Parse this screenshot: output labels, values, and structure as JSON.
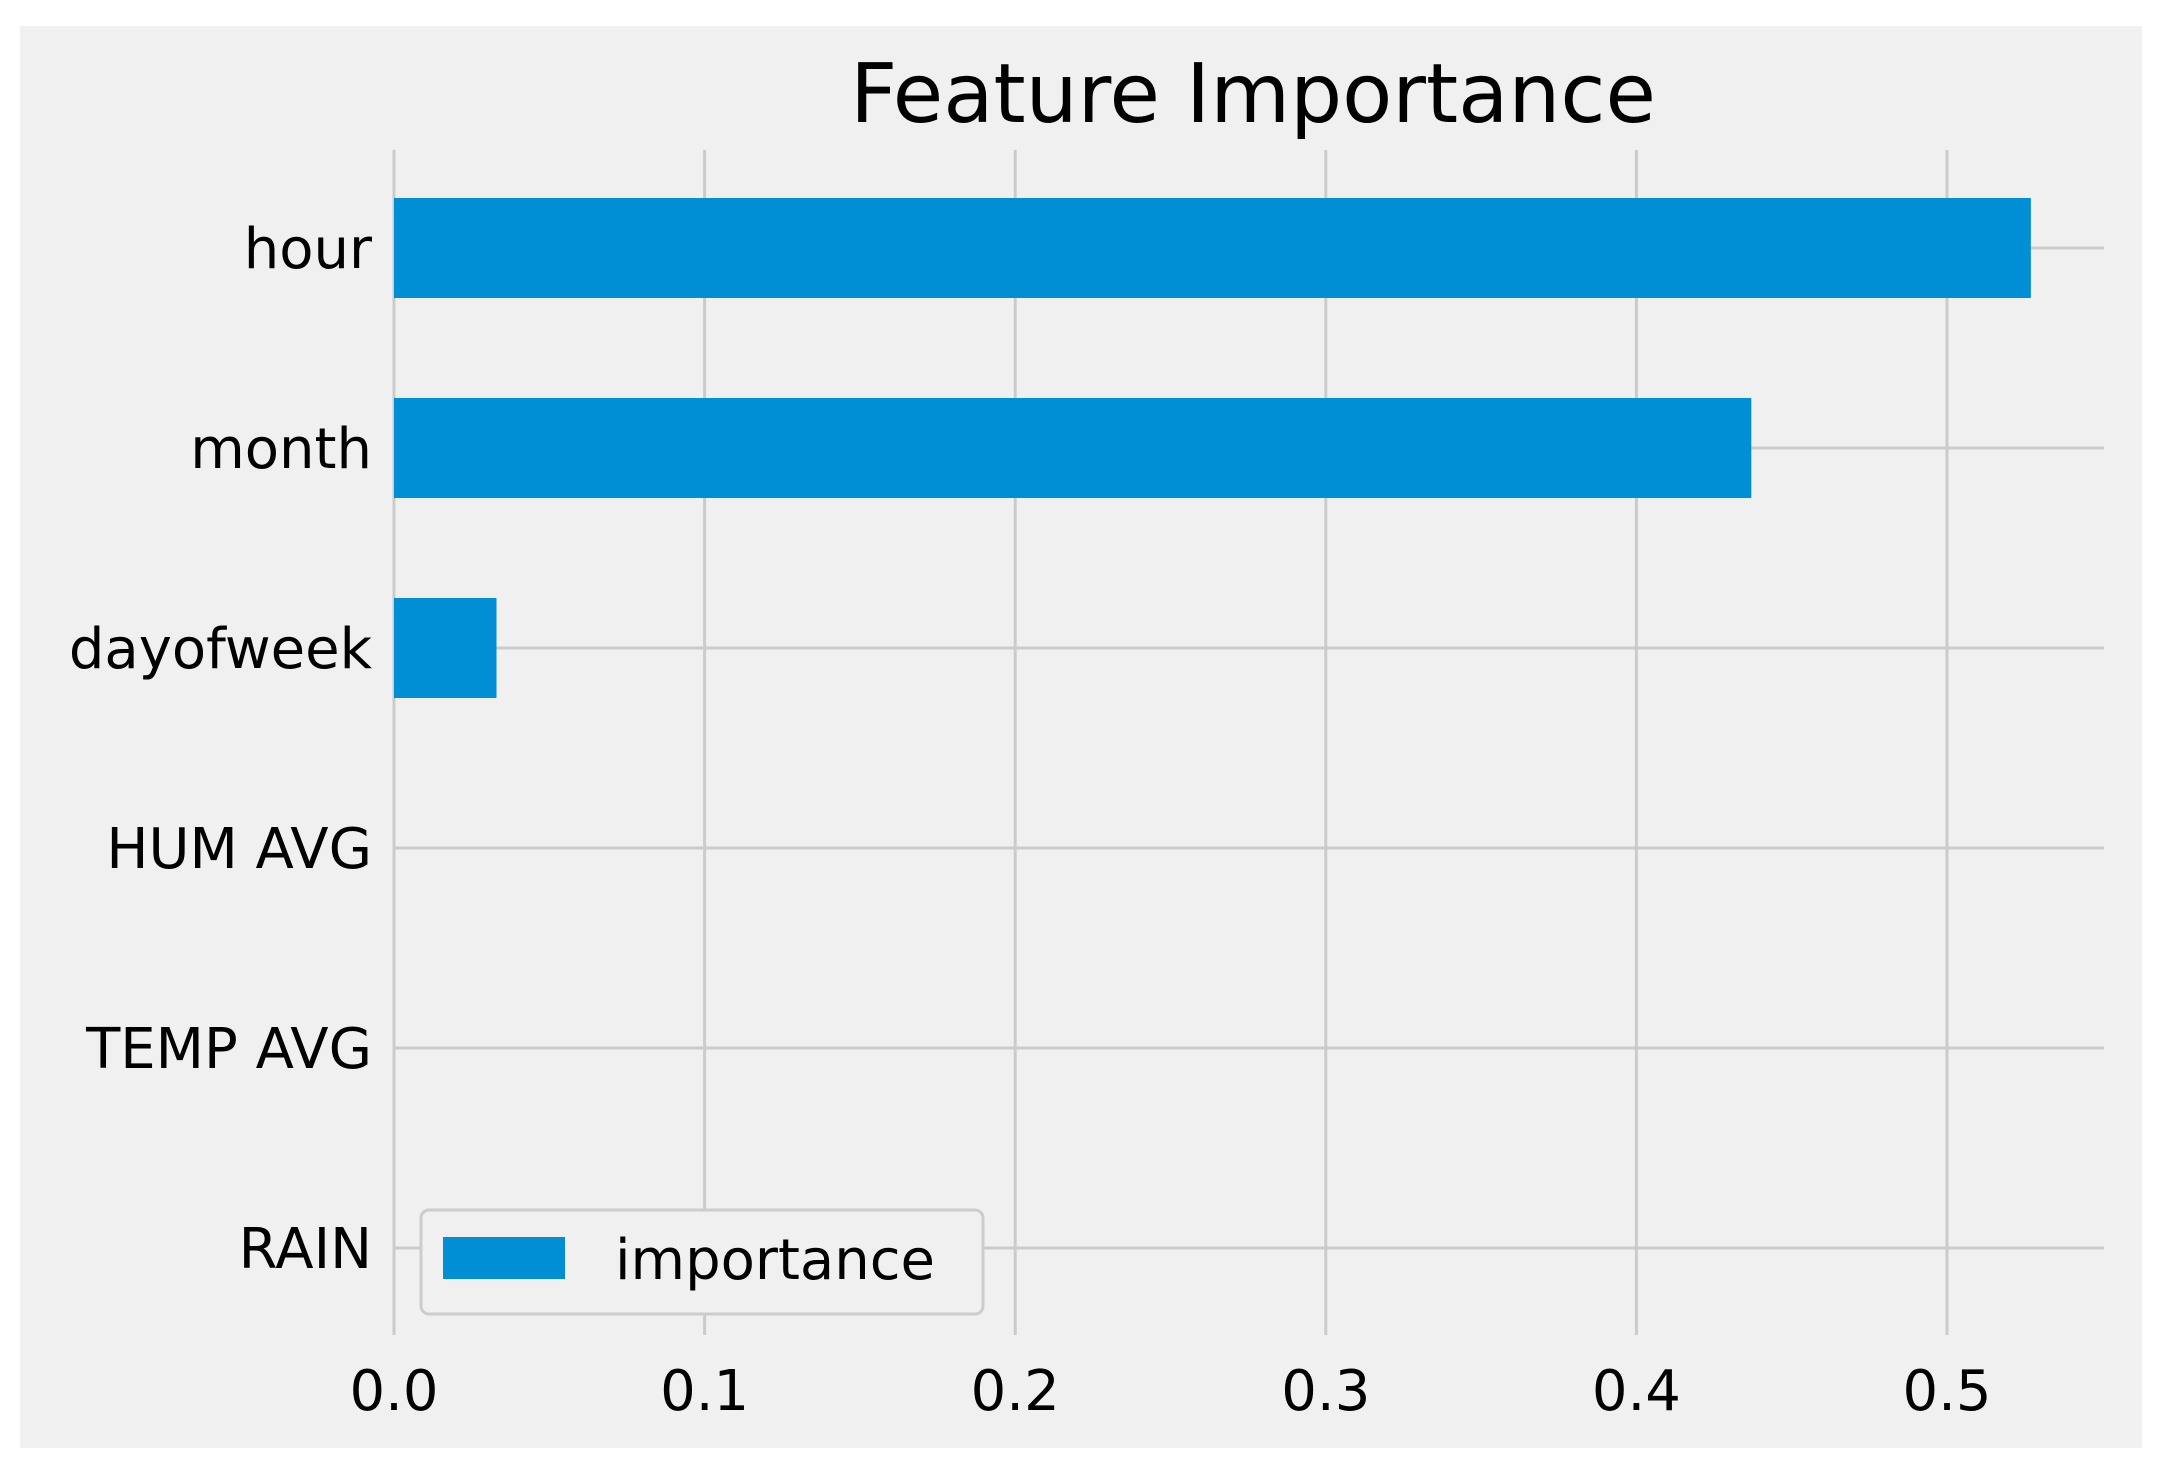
{
  "chart_data": {
    "type": "bar",
    "orientation": "horizontal",
    "title": "Feature Importance",
    "xlabel": "",
    "ylabel": "",
    "categories": [
      "hour",
      "month",
      "dayofweek",
      "HUM AVG",
      "TEMP AVG",
      "RAIN"
    ],
    "series": [
      {
        "name": "importance",
        "values": [
          0.527,
          0.437,
          0.033,
          0.0,
          0.0,
          0.0
        ]
      }
    ],
    "xlim": [
      0,
      0.55
    ],
    "xticks": [
      0.0,
      0.1,
      0.2,
      0.3,
      0.4,
      0.5
    ],
    "xtick_labels": [
      "0.0",
      "0.1",
      "0.2",
      "0.3",
      "0.4",
      "0.5"
    ],
    "grid": true,
    "legend_position": "bottom-left",
    "colors": {
      "bar": "#008fd5",
      "plot_background": "#f0f0f0",
      "grid": "#cbcbcb",
      "text": "#000000",
      "legend_border": "#cccccc"
    }
  }
}
